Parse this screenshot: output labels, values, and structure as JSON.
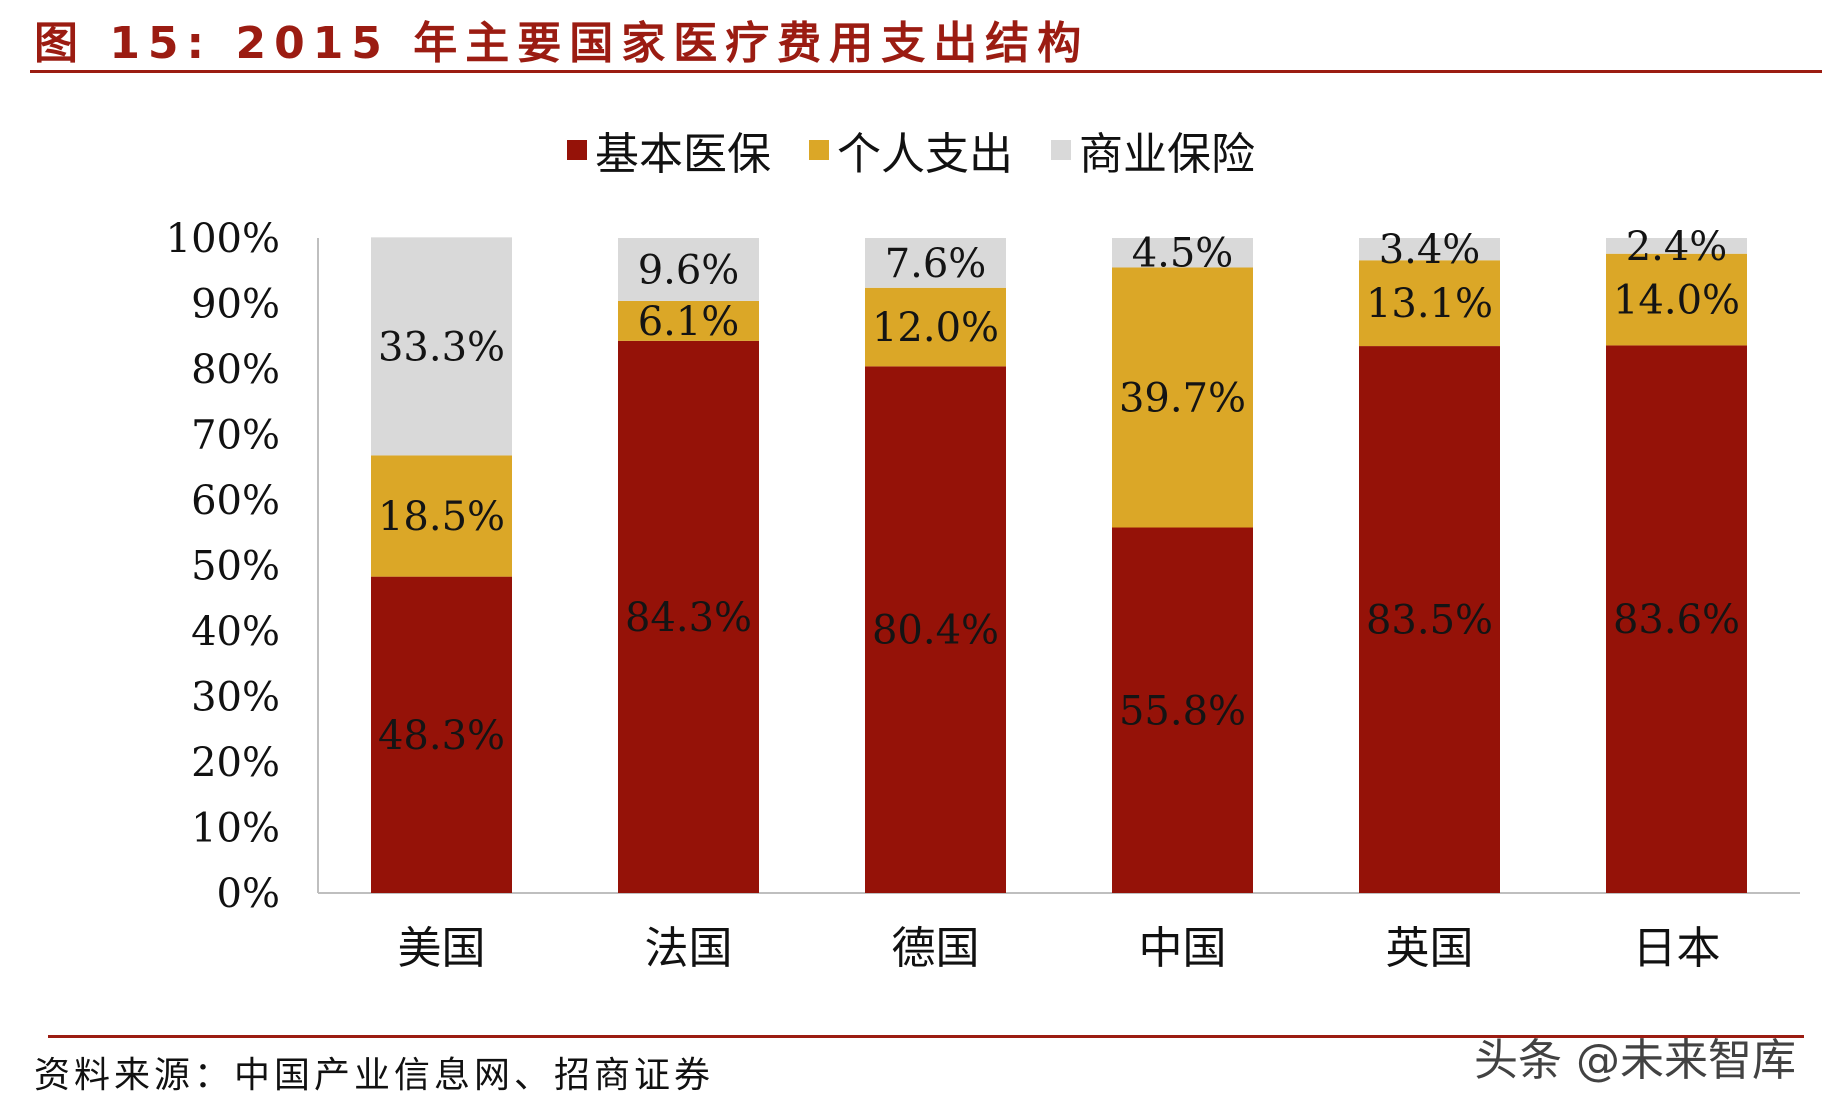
{
  "figure": {
    "title": "图 15: 2015 年主要国家医疗费用支出结构",
    "source": "资料来源：中国产业信息网、招商证券",
    "watermark": "头条 @未来智库"
  },
  "chart_data": {
    "type": "bar",
    "stacked": true,
    "categories": [
      "美国",
      "法国",
      "德国",
      "中国",
      "英国",
      "日本"
    ],
    "series": [
      {
        "name": "基本医保",
        "values": [
          48.3,
          84.3,
          80.4,
          55.8,
          83.5,
          83.6
        ],
        "labels": [
          "48.3%",
          "84.3%",
          "80.4%",
          "55.8%",
          "83.5%",
          "83.6%"
        ],
        "color": "#951208",
        "label_color": "#141414"
      },
      {
        "name": "个人支出",
        "values": [
          18.5,
          6.1,
          12.0,
          39.7,
          13.1,
          14.0
        ],
        "labels": [
          "18.5%",
          "6.1%",
          "12.0%",
          "39.7%",
          "13.1%",
          "14.0%"
        ],
        "color": "#dba727",
        "label_color": "#141414"
      },
      {
        "name": "商业保险",
        "values": [
          33.3,
          9.6,
          7.6,
          4.5,
          3.4,
          2.4
        ],
        "labels": [
          "33.3%",
          "9.6%",
          "7.6%",
          "4.5%",
          "3.4%",
          "2.4%"
        ],
        "color": "#d9d9d9",
        "label_color": "#141414"
      }
    ],
    "ylim": [
      0,
      100
    ],
    "yticks": [
      "0%",
      "10%",
      "20%",
      "30%",
      "40%",
      "50%",
      "60%",
      "70%",
      "80%",
      "90%",
      "100%"
    ],
    "legend_position": "top-center",
    "grid": false,
    "title": "",
    "xlabel": "",
    "ylabel": ""
  }
}
